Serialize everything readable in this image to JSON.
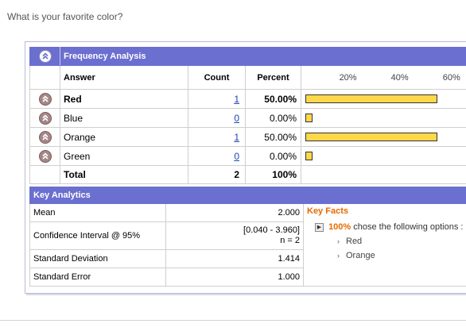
{
  "question": "What is your favorite color?",
  "frequency": {
    "title": "Frequency Analysis",
    "columns": {
      "answer": "Answer",
      "count": "Count",
      "percent": "Percent"
    },
    "scale_ticks": [
      "20%",
      "40%",
      "60%"
    ],
    "rows": [
      {
        "answer": "Red",
        "count": "1",
        "percent": "50.00%",
        "value": 50
      },
      {
        "answer": "Blue",
        "count": "0",
        "percent": "0.00%",
        "value": 0
      },
      {
        "answer": "Orange",
        "count": "1",
        "percent": "50.00%",
        "value": 50
      },
      {
        "answer": "Green",
        "count": "0",
        "percent": "0.00%",
        "value": 0
      }
    ],
    "total": {
      "label": "Total",
      "count": "2",
      "percent": "100%"
    }
  },
  "key_analytics": {
    "title": "Key Analytics",
    "mean": {
      "label": "Mean",
      "value": "2.000"
    },
    "ci": {
      "label": "Confidence Interval @ 95%",
      "value": "[0.040 - 3.960]",
      "n": "n = 2"
    },
    "sd": {
      "label": "Standard Deviation",
      "value": "1.414"
    },
    "se": {
      "label": "Standard Error",
      "value": "1.000"
    },
    "key_facts": {
      "title": "Key Facts",
      "pct": "100%",
      "text": "chose the following options :",
      "options": [
        "Red",
        "Orange"
      ]
    }
  },
  "colors": {
    "header": "#6b6fcf",
    "bar": "#ffd84a",
    "accent": "#e56a00"
  }
}
